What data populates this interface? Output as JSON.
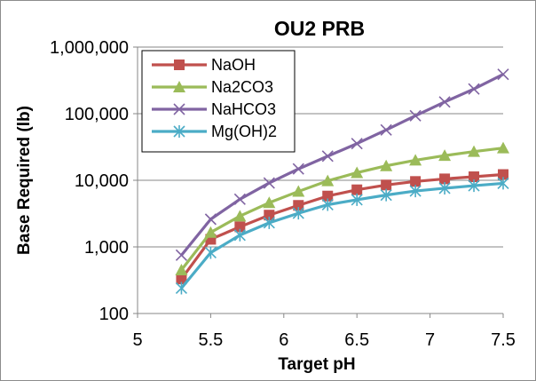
{
  "chart_data": {
    "type": "line",
    "title": "OU2 PRB",
    "xlabel": "Target pH",
    "ylabel": "Base Required (lb)",
    "yscale": "log",
    "xlim": [
      5,
      7.5
    ],
    "ylim": [
      100,
      1000000
    ],
    "x_ticks": [
      "5",
      "5.5",
      "6",
      "6.5",
      "7",
      "7.5"
    ],
    "y_ticks": [
      "100",
      "1,000",
      "10,000",
      "100,000",
      "1,000,000"
    ],
    "grid": "horizontal",
    "legend_position": "top-left",
    "x": [
      5.3,
      5.5,
      5.7,
      5.9,
      6.1,
      6.3,
      6.5,
      6.7,
      6.9,
      7.1,
      7.3,
      7.5
    ],
    "series": [
      {
        "name": "NaOH",
        "color": "#c0504d",
        "marker": "square",
        "values": [
          330,
          1300,
          2000,
          3000,
          4200,
          5800,
          7200,
          8500,
          9600,
          10500,
          11300,
          12200
        ]
      },
      {
        "name": "Na2CO3",
        "color": "#9bbb59",
        "marker": "triangle",
        "values": [
          450,
          1650,
          2900,
          4600,
          6800,
          9800,
          13000,
          16500,
          20000,
          23500,
          27000,
          30500
        ]
      },
      {
        "name": "NaHCO3",
        "color": "#8064a2",
        "marker": "x",
        "values": [
          750,
          2600,
          5200,
          9100,
          14800,
          23000,
          35500,
          57000,
          93000,
          150000,
          235000,
          390000
        ]
      },
      {
        "name": "Mg(OH)2",
        "color": "#4bacc6",
        "marker": "star",
        "values": [
          240,
          820,
          1500,
          2300,
          3200,
          4300,
          5100,
          6000,
          6900,
          7600,
          8300,
          9000
        ]
      }
    ]
  }
}
